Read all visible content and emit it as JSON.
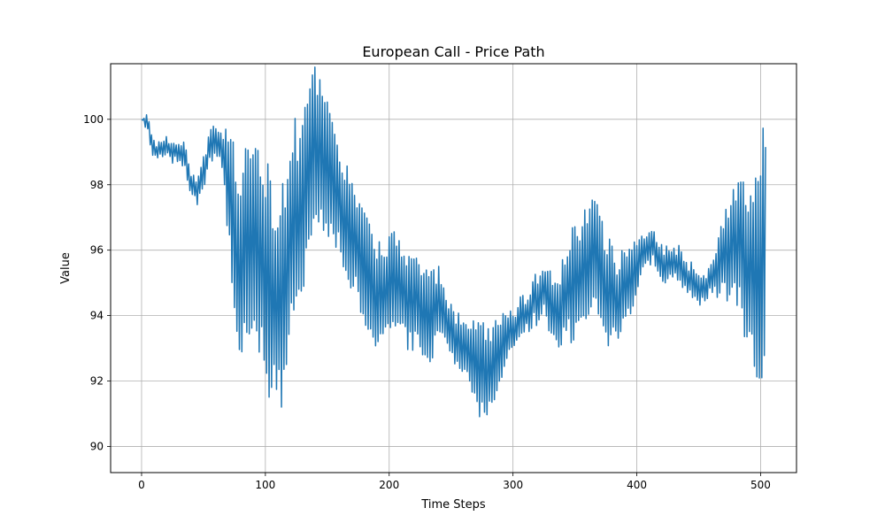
{
  "chart_data": {
    "type": "line",
    "title": "European Call - Price Path",
    "xlabel": "Time Steps",
    "ylabel": "Value",
    "xlim": [
      -25,
      529
    ],
    "ylim": [
      89.2,
      101.7
    ],
    "xticks": [
      0,
      100,
      200,
      300,
      400,
      500
    ],
    "yticks": [
      90,
      92,
      94,
      96,
      98,
      100
    ],
    "grid": true,
    "line_color": "#1f77b4",
    "series": [
      {
        "name": "",
        "color": "#1f77b4",
        "x_start": 0,
        "x_end": 504,
        "anchors_x": [
          0,
          5,
          8,
          12,
          18,
          24,
          30,
          35,
          40,
          45,
          50,
          55,
          60,
          65,
          70,
          75,
          80,
          85,
          90,
          95,
          100,
          105,
          110,
          115,
          120,
          125,
          130,
          135,
          140,
          145,
          150,
          155,
          160,
          165,
          170,
          175,
          180,
          185,
          190,
          195,
          200,
          205,
          210,
          215,
          220,
          225,
          230,
          235,
          240,
          245,
          250,
          255,
          260,
          265,
          270,
          275,
          280,
          285,
          290,
          295,
          300,
          305,
          310,
          315,
          320,
          325,
          330,
          335,
          340,
          345,
          350,
          355,
          360,
          365,
          370,
          375,
          380,
          385,
          390,
          395,
          400,
          405,
          410,
          415,
          420,
          425,
          430,
          435,
          440,
          445,
          450,
          455,
          460,
          465,
          470,
          475,
          480,
          485,
          490,
          495,
          500,
          504
        ],
        "anchors_y": [
          100,
          99.9,
          99.3,
          99.0,
          99.2,
          99.1,
          99.0,
          98.9,
          98.0,
          97.9,
          98.3,
          99.3,
          99.3,
          99.0,
          98.0,
          96.5,
          95.5,
          96.0,
          96.5,
          96.0,
          95.5,
          94.8,
          94.5,
          95.0,
          96.5,
          97.0,
          97.5,
          98.5,
          99.0,
          98.8,
          98.5,
          98.3,
          97.5,
          97.0,
          96.5,
          96.0,
          95.5,
          95.0,
          94.8,
          94.5,
          95.0,
          95.2,
          95.0,
          94.5,
          94.5,
          94.2,
          94.0,
          94.0,
          94.5,
          94.0,
          93.5,
          93.2,
          93.0,
          92.8,
          92.5,
          92.3,
          92.3,
          92.6,
          93.0,
          93.3,
          93.5,
          93.8,
          94.0,
          94.3,
          94.6,
          94.8,
          94.3,
          94.0,
          94.4,
          94.8,
          95.0,
          95.2,
          95.6,
          95.8,
          95.4,
          95.0,
          94.5,
          94.4,
          94.8,
          95.2,
          95.6,
          95.9,
          96.2,
          96.0,
          95.6,
          95.5,
          95.7,
          95.5,
          95.3,
          95.0,
          94.8,
          94.8,
          95.1,
          95.5,
          95.8,
          96.0,
          96.3,
          96.0,
          95.6,
          95.0,
          95.2,
          96.0
        ],
        "amp_x": [
          0,
          40,
          65,
          70,
          80,
          100,
          115,
          125,
          145,
          160,
          175,
          200,
          235,
          245,
          255,
          275,
          290,
          300,
          325,
          340,
          350,
          360,
          375,
          400,
          405,
          425,
          450,
          460,
          470,
          480,
          490,
          500,
          504
        ],
        "amp_y": [
          0.2,
          0.4,
          0.6,
          2.0,
          3.0,
          3.5,
          3.6,
          3.2,
          2.3,
          1.8,
          1.8,
          1.6,
          1.4,
          0.8,
          0.9,
          1.5,
          1.1,
          0.6,
          0.8,
          1.3,
          1.9,
          2.0,
          1.7,
          1.1,
          0.5,
          0.6,
          0.5,
          0.5,
          1.2,
          2.0,
          2.6,
          3.6,
          5.0
        ]
      }
    ]
  }
}
